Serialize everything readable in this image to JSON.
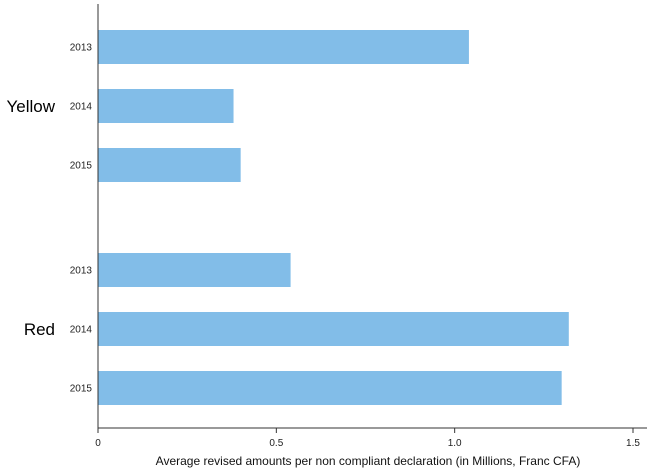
{
  "chart_data": {
    "type": "bar",
    "orientation": "horizontal",
    "xlabel": "Average revised amounts per non compliant declaration (in Millions, Franc CFA)",
    "ylabel": "",
    "xlim": [
      0,
      1.55
    ],
    "xticks": [
      "0",
      "0.5",
      "1.0",
      "1.5"
    ],
    "grid": false,
    "bar_color": "#82bde8",
    "groups": [
      {
        "name": "Yellow",
        "categories": [
          "2013",
          "2014",
          "2015"
        ],
        "values": [
          1.04,
          0.38,
          0.4
        ]
      },
      {
        "name": "Red",
        "categories": [
          "2013",
          "2014",
          "2015"
        ],
        "values": [
          0.54,
          1.32,
          1.3
        ]
      }
    ]
  }
}
